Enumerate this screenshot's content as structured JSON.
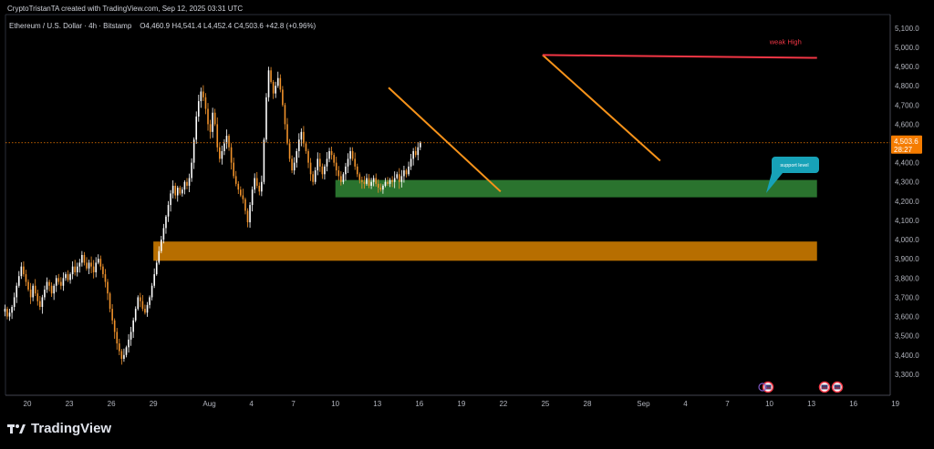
{
  "header": {
    "attribution": "CryptoTristanTA created with TradingView.com, Sep 12, 2025 03:31 UTC"
  },
  "legend": {
    "symbol": "Ethereum / U.S. Dollar · 4h · Bitstamp",
    "ohlc": "O4,460.9  H4,541.4  L4,452.4  C4,503.6  +42.8 (+0.96%)"
  },
  "price_label": {
    "value": "4,503.6",
    "countdown": "28:27"
  },
  "annotations": {
    "weak_high": "weak High",
    "support_callout": "support level"
  },
  "brand": {
    "name": "TradingView"
  },
  "colors": {
    "background": "#000000",
    "up_candle": "#ffffff",
    "down_candle": "#f0922b",
    "trendline": "#f7931a",
    "weak_high_line": "#f23645",
    "support_zone": "#2e7d32",
    "demand_zone": "#c77700",
    "price_label": "#f57c00",
    "callout": "#17a2b8",
    "axis_text": "#b2b5be"
  },
  "chart_data": {
    "type": "candlestick",
    "title": "Ethereum / U.S. Dollar · 4h · Bitstamp",
    "ylim": [
      3200,
      5150
    ],
    "y_ticks": [
      3300,
      3400,
      3500,
      3600,
      3700,
      3800,
      3900,
      4000,
      4100,
      4200,
      4300,
      4400,
      4500,
      4600,
      4700,
      4800,
      4900,
      5000,
      5100
    ],
    "y_tick_labels": [
      "3,300.0",
      "3,400.0",
      "3,500.0",
      "3,600.0",
      "3,700.0",
      "3,800.0",
      "3,900.0",
      "4,000.0",
      "4,100.0",
      "4,200.0",
      "4,300.0",
      "4,400.0",
      "4,500.0",
      "4,600.0",
      "4,700.0",
      "4,800.0",
      "4,900.0",
      "5,000.0",
      "5,100.0"
    ],
    "x_ticks": [
      {
        "day": 0,
        "label": "20"
      },
      {
        "day": 3,
        "label": "23"
      },
      {
        "day": 6,
        "label": "26"
      },
      {
        "day": 9,
        "label": "29"
      },
      {
        "day": 13,
        "label": "Aug"
      },
      {
        "day": 16,
        "label": "4"
      },
      {
        "day": 19,
        "label": "7"
      },
      {
        "day": 22,
        "label": "10"
      },
      {
        "day": 25,
        "label": "13"
      },
      {
        "day": 28,
        "label": "16"
      },
      {
        "day": 31,
        "label": "19"
      },
      {
        "day": 34,
        "label": "22"
      },
      {
        "day": 37,
        "label": "25"
      },
      {
        "day": 40,
        "label": "28"
      },
      {
        "day": 44,
        "label": "Sep"
      },
      {
        "day": 47,
        "label": "4"
      },
      {
        "day": 50,
        "label": "7"
      },
      {
        "day": 53,
        "label": "10"
      },
      {
        "day": 56,
        "label": "13"
      },
      {
        "day": 59,
        "label": "16"
      },
      {
        "day": 62,
        "label": "19"
      }
    ],
    "last_close": 4503.6,
    "closes": [
      3640,
      3600,
      3620,
      3650,
      3700,
      3760,
      3810,
      3860,
      3820,
      3780,
      3740,
      3700,
      3760,
      3720,
      3680,
      3650,
      3700,
      3740,
      3780,
      3760,
      3720,
      3760,
      3800,
      3780,
      3760,
      3800,
      3820,
      3790,
      3820,
      3860,
      3830,
      3860,
      3880,
      3920,
      3880,
      3850,
      3880,
      3860,
      3830,
      3880,
      3900,
      3860,
      3820,
      3780,
      3720,
      3640,
      3580,
      3520,
      3460,
      3420,
      3380,
      3400,
      3440,
      3480,
      3520,
      3580,
      3640,
      3700,
      3680,
      3640,
      3620,
      3660,
      3700,
      3760,
      3820,
      3880,
      3940,
      4000,
      4060,
      4120,
      4180,
      4240,
      4280,
      4230,
      4270,
      4240,
      4260,
      4300,
      4280,
      4320,
      4400,
      4520,
      4640,
      4720,
      4770,
      4740,
      4680,
      4600,
      4560,
      4660,
      4600,
      4480,
      4420,
      4460,
      4500,
      4540,
      4480,
      4400,
      4330,
      4290,
      4260,
      4230,
      4210,
      4150,
      4090,
      4180,
      4260,
      4320,
      4280,
      4250,
      4300,
      4520,
      4740,
      4880,
      4820,
      4760,
      4800,
      4840,
      4780,
      4700,
      4600,
      4500,
      4420,
      4360,
      4400,
      4460,
      4520,
      4560,
      4500,
      4460,
      4400,
      4340,
      4300,
      4360,
      4420,
      4380,
      4340,
      4380,
      4420,
      4460,
      4440,
      4400,
      4360,
      4330,
      4300,
      4340,
      4380,
      4420,
      4460,
      4420,
      4380,
      4340,
      4310,
      4300,
      4290,
      4320,
      4280,
      4300,
      4320,
      4290,
      4270,
      4260,
      4280,
      4300,
      4290,
      4310,
      4300,
      4320,
      4340,
      4300,
      4330,
      4360,
      4340,
      4380,
      4420,
      4460,
      4440,
      4480,
      4503.6
    ],
    "highs_lows_note": "wicks estimated from closes",
    "zones": [
      {
        "name": "support zone",
        "from_day": 22,
        "to_day": 56.4,
        "low": 4220,
        "high": 4310
      },
      {
        "name": "demand zone",
        "from_day": 9,
        "to_day": 56.4,
        "low": 3890,
        "high": 3990
      }
    ],
    "lines": [
      {
        "name": "trendline 1",
        "x1": 25.8,
        "y1": 4790,
        "x2": 33.8,
        "y2": 4250
      },
      {
        "name": "trendline 2",
        "x1": 36.8,
        "y1": 4960,
        "x2": 45.2,
        "y2": 4410
      },
      {
        "name": "weak high line",
        "x1": 36.8,
        "y1": 4960,
        "x2": 56.4,
        "y2": 4945
      }
    ],
    "annotations": [
      "weak High",
      "support level"
    ]
  }
}
